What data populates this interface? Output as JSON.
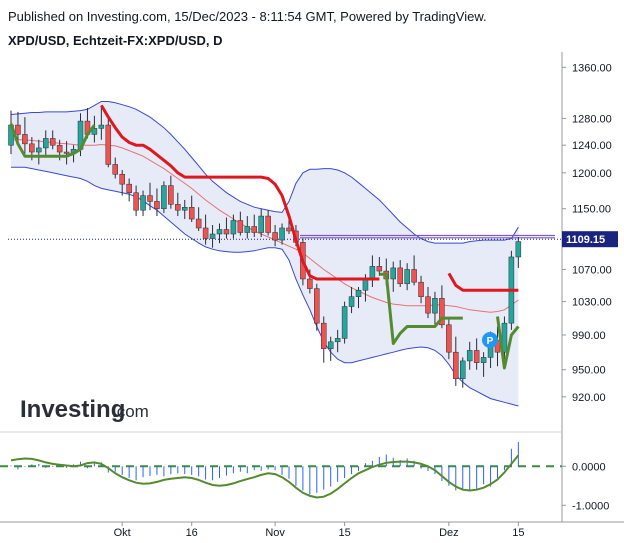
{
  "header": {
    "published": "Published on Investing.com, 15/Dec/2023 - 8:11:54 GMT, Powered by TradingView.",
    "symbol": "XPD/USD, Echtzeit-FX:XPD/USD, D"
  },
  "logo": {
    "main": "Investing",
    "suffix": ".com"
  },
  "colors": {
    "up": "#26a69a",
    "down": "#ef5350",
    "stop": "#e0171f",
    "green_line": "#558b2f",
    "band_fill": "#e3e6f6",
    "band_line": "#3949cc",
    "mid_line": "#e57373",
    "price_badge": "#1a237e",
    "hist": "#2962ff"
  },
  "chart_data": [
    {
      "type": "candlestick",
      "title": "XPD/USD, Echtzeit-FX:XPD/USD, D",
      "y_scale": "log",
      "ylim": [
        895,
        1385
      ],
      "yticks": [
        1360,
        1280,
        1240,
        1200,
        1150,
        1070,
        1030,
        990,
        950,
        920
      ],
      "ytick_labels": [
        "1360.00",
        "1280.00",
        "1240.00",
        "1200.00",
        "1150.00",
        "1070.00",
        "1030.00",
        "990.00",
        "950.00",
        "920.00"
      ],
      "xtick_labels": [
        {
          "label": "Okt",
          "index": 16
        },
        {
          "label": "16",
          "index": 26
        },
        {
          "label": "Nov",
          "index": 38
        },
        {
          "label": "15",
          "index": 48
        },
        {
          "label": "Dez",
          "index": 63
        },
        {
          "label": "15",
          "index": 73
        }
      ],
      "last_price": 1109.15,
      "last_price_label": "1109.15",
      "resistance_levels": [
        1114,
        1111
      ],
      "ohlc": [
        [
          1240,
          1292,
          1227,
          1270
        ],
        [
          1270,
          1290,
          1244,
          1256
        ],
        [
          1256,
          1282,
          1228,
          1242
        ],
        [
          1242,
          1252,
          1218,
          1230
        ],
        [
          1230,
          1248,
          1212,
          1236
        ],
        [
          1236,
          1262,
          1222,
          1250
        ],
        [
          1250,
          1262,
          1234,
          1240
        ],
        [
          1240,
          1248,
          1218,
          1230
        ],
        [
          1230,
          1246,
          1212,
          1228
        ],
        [
          1228,
          1240,
          1215,
          1234
        ],
        [
          1234,
          1288,
          1224,
          1276
        ],
        [
          1276,
          1296,
          1250,
          1256
        ],
        [
          1256,
          1284,
          1244,
          1265
        ],
        [
          1265,
          1300,
          1248,
          1270
        ],
        [
          1270,
          1280,
          1208,
          1212
        ],
        [
          1212,
          1222,
          1192,
          1198
        ],
        [
          1198,
          1204,
          1168,
          1184
        ],
        [
          1184,
          1192,
          1160,
          1172
        ],
        [
          1172,
          1182,
          1140,
          1148
        ],
        [
          1148,
          1175,
          1140,
          1168
        ],
        [
          1168,
          1186,
          1148,
          1160
        ],
        [
          1160,
          1178,
          1140,
          1150
        ],
        [
          1150,
          1188,
          1144,
          1182
        ],
        [
          1182,
          1196,
          1150,
          1156
        ],
        [
          1156,
          1172,
          1140,
          1148
        ],
        [
          1148,
          1162,
          1136,
          1152
        ],
        [
          1152,
          1168,
          1132,
          1136
        ],
        [
          1136,
          1152,
          1120,
          1124
        ],
        [
          1124,
          1142,
          1102,
          1110
        ],
        [
          1110,
          1128,
          1098,
          1116
        ],
        [
          1116,
          1130,
          1104,
          1122
        ],
        [
          1122,
          1138,
          1110,
          1116
        ],
        [
          1116,
          1142,
          1110,
          1134
        ],
        [
          1134,
          1146,
          1114,
          1118
        ],
        [
          1118,
          1140,
          1110,
          1126
        ],
        [
          1126,
          1142,
          1112,
          1118
        ],
        [
          1118,
          1150,
          1112,
          1140
        ],
        [
          1140,
          1148,
          1114,
          1118
        ],
        [
          1118,
          1128,
          1100,
          1108
        ],
        [
          1108,
          1130,
          1102,
          1124
        ],
        [
          1124,
          1142,
          1116,
          1120
        ],
        [
          1120,
          1128,
          1100,
          1105
        ],
        [
          1105,
          1110,
          1050,
          1058
        ],
        [
          1058,
          1070,
          1040,
          1046
        ],
        [
          1046,
          1052,
          995,
          1004
        ],
        [
          1004,
          1012,
          958,
          974
        ],
        [
          974,
          988,
          960,
          982
        ],
        [
          982,
          996,
          970,
          986
        ],
        [
          986,
          1030,
          980,
          1024
        ],
        [
          1024,
          1048,
          1016,
          1036
        ],
        [
          1036,
          1048,
          1022,
          1044
        ],
        [
          1044,
          1064,
          1030,
          1058
        ],
        [
          1058,
          1088,
          1048,
          1074
        ],
        [
          1074,
          1086,
          1062,
          1068
        ],
        [
          1068,
          1084,
          1050,
          1058
        ],
        [
          1058,
          1080,
          1042,
          1072
        ],
        [
          1072,
          1082,
          1048,
          1052
        ],
        [
          1052,
          1078,
          1044,
          1070
        ],
        [
          1070,
          1088,
          1050,
          1054
        ],
        [
          1054,
          1062,
          1028,
          1036
        ],
        [
          1036,
          1048,
          1010,
          1016
        ],
        [
          1016,
          1042,
          1002,
          1034
        ],
        [
          1034,
          1050,
          998,
          1002
        ],
        [
          1002,
          1010,
          962,
          970
        ],
        [
          970,
          988,
          932,
          940
        ],
        [
          940,
          964,
          930,
          960
        ],
        [
          960,
          982,
          950,
          972
        ],
        [
          972,
          986,
          950,
          958
        ],
        [
          958,
          970,
          942,
          964
        ],
        [
          964,
          994,
          952,
          984
        ],
        [
          984,
          1000,
          954,
          970
        ],
        [
          970,
          1012,
          960,
          1004
        ],
        [
          1004,
          1094,
          996,
          1086
        ],
        [
          1086,
          1112,
          1072,
          1106
        ]
      ],
      "bb_upper": [
        1286,
        1287,
        1288,
        1289,
        1289,
        1290,
        1290,
        1290,
        1290,
        1291,
        1292,
        1294,
        1300,
        1306,
        1306,
        1304,
        1301,
        1298,
        1294,
        1288,
        1282,
        1274,
        1266,
        1256,
        1245,
        1234,
        1222,
        1210,
        1198,
        1188,
        1180,
        1172,
        1166,
        1160,
        1156,
        1152,
        1150,
        1148,
        1146,
        1145,
        1160,
        1185,
        1200,
        1205,
        1205,
        1206,
        1206,
        1204,
        1200,
        1194,
        1186,
        1178,
        1170,
        1162,
        1152,
        1142,
        1132,
        1124,
        1116,
        1110,
        1106,
        1104,
        1104,
        1104,
        1104,
        1104,
        1106,
        1107,
        1108,
        1108,
        1108,
        1108,
        1110,
        1125
      ],
      "bb_mid": [
        1248,
        1248,
        1248,
        1247,
        1246,
        1245,
        1244,
        1243,
        1242,
        1241,
        1240,
        1240,
        1240,
        1241,
        1240,
        1239,
        1236,
        1232,
        1228,
        1224,
        1218,
        1212,
        1206,
        1199,
        1192,
        1185,
        1178,
        1170,
        1162,
        1155,
        1148,
        1142,
        1136,
        1130,
        1125,
        1120,
        1116,
        1112,
        1108,
        1104,
        1100,
        1096,
        1091,
        1084,
        1077,
        1070,
        1064,
        1058,
        1052,
        1047,
        1043,
        1039,
        1035,
        1032,
        1029,
        1027,
        1026,
        1025,
        1025,
        1025,
        1025,
        1026,
        1026,
        1025,
        1024,
        1022,
        1020,
        1019,
        1018,
        1017,
        1018,
        1020,
        1026,
        1032
      ],
      "bb_lower": [
        1208,
        1208,
        1208,
        1206,
        1204,
        1202,
        1200,
        1198,
        1196,
        1194,
        1192,
        1188,
        1182,
        1178,
        1176,
        1174,
        1172,
        1170,
        1166,
        1161,
        1154,
        1148,
        1140,
        1132,
        1124,
        1116,
        1110,
        1104,
        1099,
        1096,
        1094,
        1093,
        1092,
        1092,
        1093,
        1094,
        1096,
        1098,
        1098,
        1096,
        1082,
        1058,
        1038,
        1020,
        1000,
        982,
        970,
        962,
        958,
        958,
        960,
        962,
        964,
        966,
        968,
        970,
        972,
        974,
        975,
        976,
        975,
        972,
        966,
        956,
        944,
        936,
        930,
        926,
        922,
        918,
        916,
        914,
        912,
        910
      ],
      "stop_line": [
        null,
        null,
        null,
        null,
        null,
        null,
        null,
        null,
        null,
        null,
        null,
        null,
        null,
        1300,
        1282,
        1266,
        1252,
        1244,
        1240,
        1240,
        1234,
        1226,
        1218,
        1210,
        1200,
        1194,
        1194,
        1194,
        1194,
        1194,
        1194,
        1194,
        1194,
        1194,
        1194,
        1194,
        1194,
        1192,
        1184,
        1168,
        1140,
        1108,
        1080,
        1062,
        1058,
        1058,
        1058,
        1058,
        1058,
        1058,
        1058,
        1058,
        1058,
        1058,
        null,
        null,
        null,
        null,
        null,
        null,
        null,
        null,
        null,
        1065,
        1050,
        1044,
        1044,
        1044,
        1044,
        1044,
        1044,
        1044,
        1044,
        1044,
        null
      ],
      "green_line": [
        1272,
        1242,
        1224,
        1224,
        1224,
        1224,
        1224,
        1224,
        1224,
        1228,
        1234,
        1256,
        1270,
        null,
        null,
        null,
        null,
        null,
        null,
        null,
        null,
        null,
        null,
        null,
        null,
        null,
        null,
        null,
        null,
        null,
        null,
        null,
        null,
        null,
        null,
        null,
        null,
        null,
        null,
        null,
        null,
        null,
        null,
        null,
        null,
        null,
        null,
        null,
        null,
        null,
        null,
        null,
        null,
        1064,
        1064,
        980,
        992,
        1000,
        1000,
        1000,
        1000,
        1000,
        1010,
        1010,
        1010,
        1010,
        null,
        null,
        null,
        null,
        1012,
        952,
        990,
        1000
      ]
    },
    {
      "type": "oscillator",
      "ylim": [
        -1.3,
        0.75
      ],
      "yticks": [
        0,
        -1
      ],
      "ytick_labels": [
        "0.0000",
        "-1.0000"
      ],
      "dashed_level": 0,
      "line": [
        0.15,
        0.18,
        0.2,
        0.19,
        0.15,
        0.1,
        0.06,
        0.04,
        0.02,
        0.0,
        0.02,
        0.08,
        0.1,
        0.06,
        -0.05,
        -0.18,
        -0.28,
        -0.36,
        -0.42,
        -0.45,
        -0.44,
        -0.4,
        -0.35,
        -0.32,
        -0.3,
        -0.28,
        -0.3,
        -0.35,
        -0.42,
        -0.48,
        -0.5,
        -0.48,
        -0.44,
        -0.38,
        -0.33,
        -0.28,
        -0.22,
        -0.18,
        -0.2,
        -0.28,
        -0.4,
        -0.55,
        -0.68,
        -0.76,
        -0.8,
        -0.78,
        -0.7,
        -0.58,
        -0.44,
        -0.3,
        -0.18,
        -0.1,
        -0.02,
        0.04,
        0.09,
        0.11,
        0.12,
        0.12,
        0.1,
        0.06,
        0.0,
        -0.1,
        -0.25,
        -0.4,
        -0.52,
        -0.6,
        -0.62,
        -0.6,
        -0.55,
        -0.46,
        -0.34,
        -0.16,
        0.06,
        0.28
      ],
      "hist": [
        0.02,
        -0.08,
        -0.02,
        0.05,
        0.06,
        -0.04,
        -0.02,
        0.02,
        -0.04,
        0.05,
        0.12,
        -0.05,
        0.08,
        0.1,
        -0.16,
        -0.14,
        -0.22,
        -0.3,
        -0.36,
        -0.28,
        -0.25,
        -0.22,
        -0.26,
        -0.2,
        -0.18,
        -0.2,
        -0.22,
        -0.26,
        -0.34,
        -0.36,
        -0.3,
        -0.24,
        -0.18,
        -0.14,
        -0.18,
        -0.1,
        -0.12,
        -0.08,
        -0.1,
        -0.22,
        -0.32,
        -0.5,
        -0.62,
        -0.72,
        -0.68,
        -0.6,
        -0.52,
        -0.4,
        -0.3,
        -0.2,
        -0.12,
        0.08,
        0.14,
        0.24,
        0.3,
        0.22,
        0.16,
        0.2,
        0.14,
        -0.06,
        -0.12,
        -0.2,
        -0.38,
        -0.5,
        -0.62,
        -0.6,
        -0.64,
        -0.58,
        -0.46,
        -0.52,
        -0.3,
        -0.1,
        0.45,
        0.62
      ]
    }
  ]
}
